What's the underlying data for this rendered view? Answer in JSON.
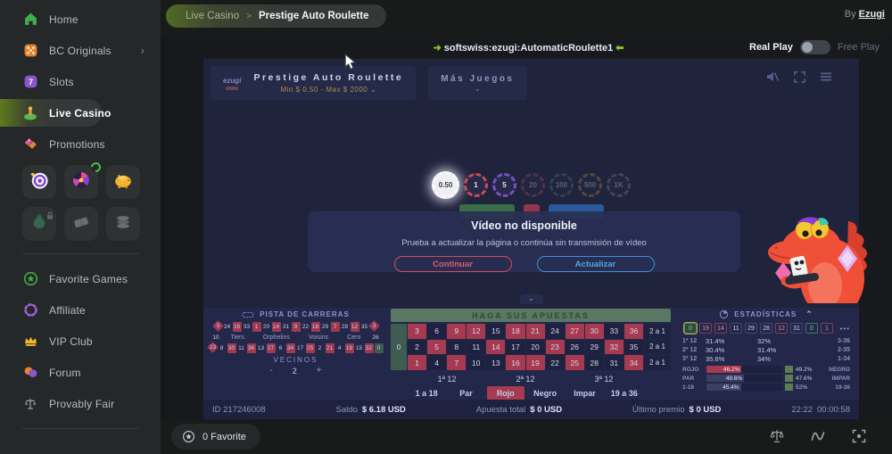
{
  "sidebar": {
    "items": [
      {
        "label": "Home",
        "icon": "home-icon"
      },
      {
        "label": "BC Originals",
        "icon": "dice-icon",
        "chevron": true
      },
      {
        "label": "Slots",
        "icon": "slots-icon"
      },
      {
        "label": "Live Casino",
        "icon": "live-casino-icon",
        "active": true
      },
      {
        "label": "Promotions",
        "icon": "promotions-icon"
      }
    ],
    "shortcuts": [
      {
        "icon": "spin-target-icon"
      },
      {
        "icon": "lucky-wheel-icon",
        "badge": true
      },
      {
        "icon": "piggy-bank-icon"
      },
      {
        "icon": "vault-icon",
        "locked": true,
        "dim": true
      },
      {
        "icon": "ticket-icon",
        "dim": true
      },
      {
        "icon": "coins-icon",
        "dim": true
      }
    ],
    "bottom_items": [
      {
        "label": "Favorite Games",
        "icon": "favorite-star-icon"
      },
      {
        "label": "Affiliate",
        "icon": "affiliate-icon"
      },
      {
        "label": "VIP Club",
        "icon": "crown-icon"
      },
      {
        "label": "Forum",
        "icon": "forum-icon"
      },
      {
        "label": "Provably Fair",
        "icon": "provably-fair-icon"
      }
    ]
  },
  "topbar": {
    "breadcrumb_section": "Live Casino",
    "breadcrumb_separator": ">",
    "breadcrumb_page": "Prestige Auto Roulette",
    "by_label": "By",
    "provider": "Ezugi"
  },
  "game_header": {
    "arrow_in": "➜",
    "arrow_out": "⬅",
    "game_code": "softswiss:ezugi:AutomaticRoulette1",
    "real_play": "Real Play",
    "free_play": "Free Play"
  },
  "game": {
    "provider_logo": "ezugi",
    "title": "Prestige Auto Roulette",
    "limits": "Min $ 0.50 - Max $ 2000",
    "limits_caret": "⌄",
    "more_games": "Más Juegos",
    "more_caret": "⌄",
    "chips": [
      {
        "value": "0.50",
        "color": "#fafafd",
        "selected": true
      },
      {
        "value": "1",
        "color": "#c94a57"
      },
      {
        "value": "5",
        "color": "#7b4fc0"
      },
      {
        "value": "20",
        "color": "#b85a6a",
        "dim": true
      },
      {
        "value": "100",
        "color": "#4f8f7a",
        "dim": true
      },
      {
        "value": "500",
        "color": "#c7a23f",
        "dim": true
      },
      {
        "value": "1K",
        "color": "#8a8fa8",
        "dim": true
      }
    ],
    "dialog": {
      "title": "Vídeo no disponible",
      "message": "Prueba a actualizar la página o continúa sin transmisión de vídeo",
      "continue_label": "Continuar",
      "refresh_label": "Actualizar",
      "continue_color": "#e25a6d",
      "refresh_color": "#55a4e8"
    },
    "collapse_caret": "⌄",
    "red_numbers": [
      1,
      3,
      5,
      7,
      9,
      12,
      14,
      16,
      18,
      19,
      21,
      23,
      25,
      27,
      30,
      32,
      34,
      36
    ],
    "racetrack": {
      "title": "PISTA DE CARRERAS",
      "row_top": [
        "5",
        "24",
        "16",
        "33",
        "1",
        "20",
        "14",
        "31",
        "9",
        "22",
        "18",
        "29",
        "7",
        "28",
        "12",
        "35",
        "3"
      ],
      "mid_left": "10",
      "sectors": [
        "Tiers",
        "Orphelins",
        "Voisins",
        "Cero"
      ],
      "mid_right": "26",
      "row_bottom": [
        "23",
        "8",
        "30",
        "11",
        "36",
        "13",
        "27",
        "6",
        "34",
        "17",
        "25",
        "2",
        "21",
        "4",
        "19",
        "15",
        "32",
        "0"
      ],
      "vecinos_label": "VECINOS",
      "minus": "-",
      "vecinos_value": "2",
      "plus": "+"
    },
    "table": {
      "banner": "HAGA SUS APUESTAS",
      "zero": "0",
      "rows": [
        [
          "3",
          "6",
          "9",
          "12",
          "15",
          "18",
          "21",
          "24",
          "27",
          "30",
          "33",
          "36"
        ],
        [
          "2",
          "5",
          "8",
          "11",
          "14",
          "17",
          "20",
          "23",
          "26",
          "29",
          "32",
          "35"
        ],
        [
          "1",
          "4",
          "7",
          "10",
          "13",
          "16",
          "19",
          "22",
          "25",
          "28",
          "31",
          "34"
        ]
      ],
      "column_label": "2 a 1",
      "dozens": [
        "1ª 12",
        "2ª 12",
        "3ª 12"
      ],
      "outside": [
        "1 a 18",
        "Par",
        "Rojo",
        "Negro",
        "Impar",
        "19 a 36"
      ]
    },
    "stats": {
      "title": "ESTADÍSTICAS",
      "recent": [
        "0",
        "19",
        "14",
        "11",
        "29",
        "28",
        "12",
        "31",
        "0",
        "1"
      ],
      "more": "•••",
      "dozen_rows": [
        {
          "label": "1ª 12",
          "pct_a": "31.4%",
          "pct_b": "32%",
          "range": "3-36"
        },
        {
          "label": "2ª 12",
          "pct_a": "30.4%",
          "pct_b": "31.4%",
          "range": "2-35"
        },
        {
          "label": "3ª 12",
          "pct_a": "35.6%",
          "pct_b": "34%",
          "range": "1-34"
        }
      ],
      "bar_rows": [
        {
          "left": "ROJO",
          "left_pct": "46.2%",
          "right_pct": "49.2%",
          "right": "NEGRO",
          "left_color": "#a63a50"
        },
        {
          "left": "PAR",
          "left_pct": "49.6%",
          "right_pct": "47.6%",
          "right": "IMPAR",
          "left_color": "#3a3f63"
        },
        {
          "left": "1-18",
          "left_pct": "45.4%",
          "right_pct": "52%",
          "right": "19-36",
          "left_color": "#3a3f63"
        }
      ]
    },
    "status_bar": {
      "round_id": "ID 217246008",
      "saldo_label": "Saldo",
      "saldo_value": "$ 6.18 USD",
      "apuesta_label": "Apuesta total",
      "apuesta_value": "$ 0 USD",
      "premio_label": "Último premio",
      "premio_value": "$ 0 USD",
      "clock": "22:22",
      "countdown": "00:00:58"
    }
  },
  "bottom_bar": {
    "favorite_label": "0 Favorite",
    "tools": [
      "balance-scale-icon",
      "live-wave-icon",
      "fullscreen-icon"
    ]
  }
}
